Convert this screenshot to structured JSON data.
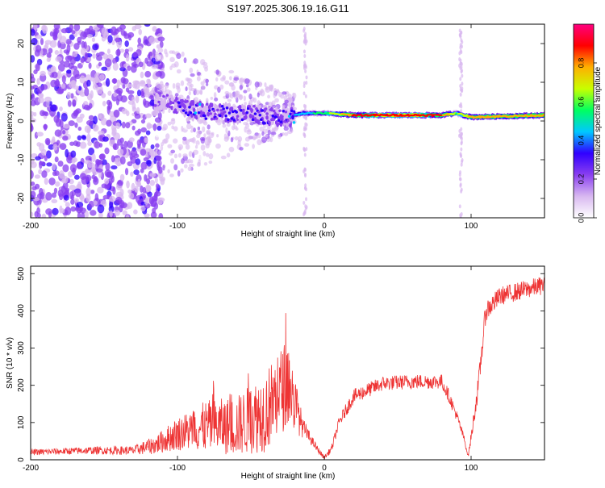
{
  "title": "S197.2025.306.19.16.G11",
  "chart_data": [
    {
      "type": "heatmap",
      "xlabel": "Height of straight line (km)",
      "ylabel": "Frequency (Hz)",
      "xlim": [
        -200,
        150
      ],
      "ylim": [
        -25,
        25
      ],
      "xticks": [
        -200,
        -100,
        0,
        100
      ],
      "yticks": [
        -20,
        -10,
        0,
        10,
        20
      ],
      "colorbar": {
        "label": "Normalized spectral amplitude",
        "range": [
          0,
          1
        ],
        "ticks": [
          "0.0",
          "0.2",
          "0.4",
          "0.6",
          "0.8"
        ],
        "colors": [
          "#ffffff",
          "#d8b8f0",
          "#8a3ff0",
          "#3000ff",
          "#00c8ff",
          "#00ff60",
          "#c8ff00",
          "#ffb000",
          "#ff0000",
          "#ff0080"
        ]
      },
      "ridge": {
        "description_points_km": [
          -110,
          -90,
          -70,
          -50,
          -35,
          -25,
          -15,
          0,
          20,
          50,
          80,
          90,
          100,
          150
        ],
        "freq_hz": [
          5,
          3,
          2,
          2,
          1,
          1,
          2,
          2,
          1.5,
          1.5,
          1.5,
          2,
          1,
          1.5
        ],
        "amplitude": [
          0.2,
          0.35,
          0.3,
          0.3,
          0.3,
          0.35,
          0.45,
          0.55,
          0.85,
          0.9,
          0.85,
          0.6,
          0.75,
          0.8
        ]
      },
      "vertical_streaks_km": [
        -13,
        93
      ]
    },
    {
      "type": "line",
      "series_name": "SNR",
      "color": "#ee3333",
      "xlabel": "Height of straight line (km)",
      "ylabel": "SNR (10 * v/v)",
      "xlim": [
        -200,
        150
      ],
      "ylim": [
        0,
        520
      ],
      "xticks": [
        -200,
        -100,
        0,
        100
      ],
      "yticks": [
        0,
        100,
        200,
        300,
        400,
        500
      ],
      "x": [
        -200,
        -160,
        -130,
        -115,
        -100,
        -80,
        -60,
        -40,
        -25,
        -20,
        -15,
        -10,
        -5,
        0,
        5,
        10,
        20,
        40,
        60,
        80,
        85,
        90,
        95,
        98,
        100,
        105,
        110,
        120,
        130,
        140,
        150
      ],
      "y": [
        20,
        25,
        25,
        40,
        70,
        90,
        90,
        130,
        210,
        150,
        90,
        60,
        30,
        5,
        30,
        100,
        170,
        205,
        210,
        210,
        170,
        120,
        60,
        10,
        60,
        200,
        400,
        440,
        450,
        460,
        470
      ],
      "noise_amplitude": [
        8,
        10,
        12,
        25,
        45,
        70,
        80,
        110,
        120,
        80,
        30,
        15,
        10,
        5,
        10,
        15,
        20,
        20,
        20,
        20,
        18,
        15,
        10,
        5,
        15,
        30,
        30,
        25,
        25,
        25,
        25
      ]
    }
  ]
}
